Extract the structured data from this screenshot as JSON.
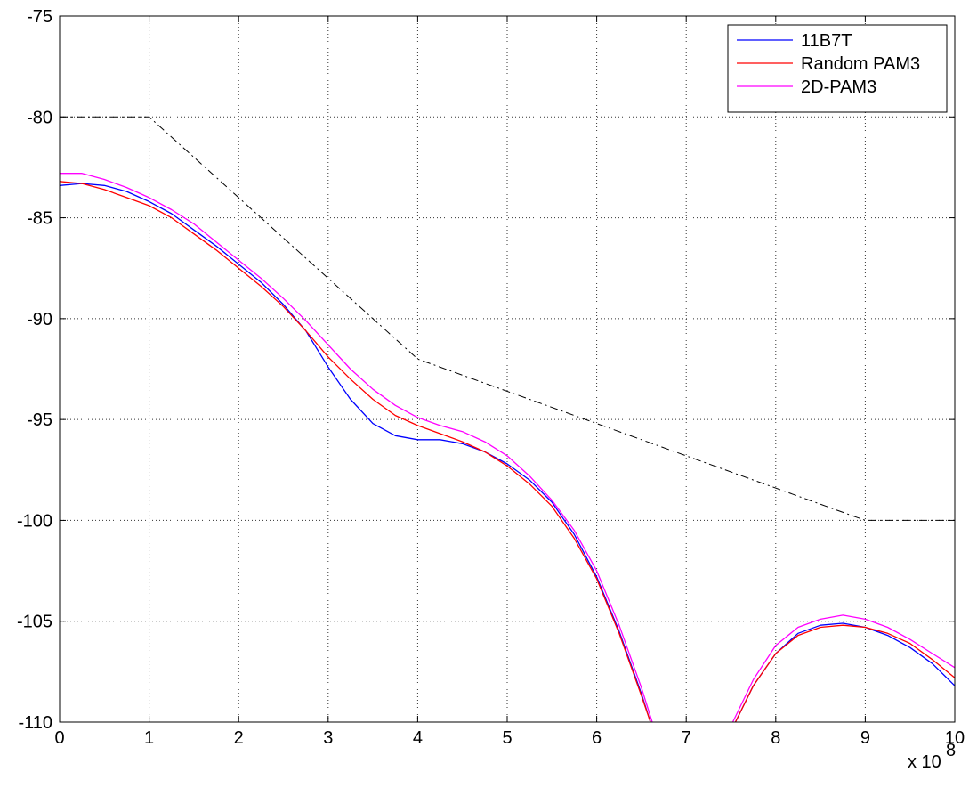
{
  "chart_data": {
    "type": "line",
    "title": "",
    "xlabel": "",
    "ylabel": "",
    "x_multiplier_label": "x 10",
    "x_multiplier_exponent": "8",
    "xlim": [
      0,
      10
    ],
    "ylim": [
      -110,
      -75
    ],
    "xticks": [
      0,
      1,
      2,
      3,
      4,
      5,
      6,
      7,
      8,
      9,
      10
    ],
    "xtick_labels": [
      "0",
      "1",
      "2",
      "3",
      "4",
      "5",
      "6",
      "7",
      "8",
      "9",
      "10"
    ],
    "yticks": [
      -110,
      -105,
      -100,
      -95,
      -90,
      -85,
      -80,
      -75
    ],
    "ytick_labels": [
      "-110",
      "-105",
      "-100",
      "-95",
      "-90",
      "-85",
      "-80",
      "-75"
    ],
    "grid": true,
    "legend_position": "top-right",
    "series": [
      {
        "name": "11B7T",
        "color": "#0000ff",
        "style": "solid",
        "points": [
          [
            0,
            -83.4
          ],
          [
            0.25,
            -83.3
          ],
          [
            0.5,
            -83.4
          ],
          [
            0.75,
            -83.7
          ],
          [
            1.0,
            -84.2
          ],
          [
            1.25,
            -84.8
          ],
          [
            1.5,
            -85.6
          ],
          [
            1.75,
            -86.4
          ],
          [
            2.0,
            -87.3
          ],
          [
            2.25,
            -88.2
          ],
          [
            2.5,
            -89.3
          ],
          [
            2.75,
            -90.6
          ],
          [
            3.0,
            -92.4
          ],
          [
            3.25,
            -94.0
          ],
          [
            3.5,
            -95.2
          ],
          [
            3.75,
            -95.8
          ],
          [
            4.0,
            -96.0
          ],
          [
            4.25,
            -96.0
          ],
          [
            4.5,
            -96.2
          ],
          [
            4.75,
            -96.6
          ],
          [
            5.0,
            -97.2
          ],
          [
            5.25,
            -98.0
          ],
          [
            5.5,
            -99.1
          ],
          [
            5.75,
            -100.7
          ],
          [
            6.0,
            -102.8
          ],
          [
            6.25,
            -105.5
          ],
          [
            6.5,
            -108.6
          ],
          [
            6.6,
            -110.0
          ]
        ]
      },
      {
        "name": "11B7T",
        "color": "#0000ff",
        "style": "solid",
        "points": [
          [
            7.55,
            -110.0
          ],
          [
            7.75,
            -108.2
          ],
          [
            8.0,
            -106.6
          ],
          [
            8.25,
            -105.6
          ],
          [
            8.5,
            -105.2
          ],
          [
            8.75,
            -105.1
          ],
          [
            9.0,
            -105.3
          ],
          [
            9.25,
            -105.7
          ],
          [
            9.5,
            -106.3
          ],
          [
            9.75,
            -107.1
          ],
          [
            10.0,
            -108.2
          ]
        ]
      },
      {
        "name": "Random PAM3",
        "color": "#ff0000",
        "style": "solid",
        "points": [
          [
            0,
            -83.2
          ],
          [
            0.25,
            -83.3
          ],
          [
            0.5,
            -83.6
          ],
          [
            0.75,
            -84.0
          ],
          [
            1.0,
            -84.4
          ],
          [
            1.25,
            -85.0
          ],
          [
            1.5,
            -85.8
          ],
          [
            1.75,
            -86.6
          ],
          [
            2.0,
            -87.5
          ],
          [
            2.25,
            -88.4
          ],
          [
            2.5,
            -89.4
          ],
          [
            2.75,
            -90.6
          ],
          [
            3.0,
            -91.9
          ],
          [
            3.25,
            -93.0
          ],
          [
            3.5,
            -94.0
          ],
          [
            3.75,
            -94.8
          ],
          [
            4.0,
            -95.3
          ],
          [
            4.25,
            -95.7
          ],
          [
            4.5,
            -96.1
          ],
          [
            4.75,
            -96.6
          ],
          [
            5.0,
            -97.3
          ],
          [
            5.25,
            -98.2
          ],
          [
            5.5,
            -99.3
          ],
          [
            5.75,
            -100.9
          ],
          [
            6.0,
            -102.9
          ],
          [
            6.25,
            -105.6
          ],
          [
            6.5,
            -108.7
          ],
          [
            6.6,
            -110.0
          ]
        ]
      },
      {
        "name": "Random PAM3",
        "color": "#ff0000",
        "style": "solid",
        "points": [
          [
            7.55,
            -110.0
          ],
          [
            7.75,
            -108.2
          ],
          [
            8.0,
            -106.6
          ],
          [
            8.25,
            -105.7
          ],
          [
            8.5,
            -105.3
          ],
          [
            8.75,
            -105.2
          ],
          [
            9.0,
            -105.3
          ],
          [
            9.25,
            -105.6
          ],
          [
            9.5,
            -106.1
          ],
          [
            9.75,
            -106.9
          ],
          [
            10.0,
            -107.8
          ]
        ]
      },
      {
        "name": "2D-PAM3",
        "color": "#ff00ff",
        "style": "solid",
        "points": [
          [
            0,
            -82.8
          ],
          [
            0.25,
            -82.8
          ],
          [
            0.5,
            -83.1
          ],
          [
            0.75,
            -83.5
          ],
          [
            1.0,
            -84.0
          ],
          [
            1.25,
            -84.6
          ],
          [
            1.5,
            -85.3
          ],
          [
            1.75,
            -86.2
          ],
          [
            2.0,
            -87.1
          ],
          [
            2.25,
            -88.0
          ],
          [
            2.5,
            -89.0
          ],
          [
            2.75,
            -90.1
          ],
          [
            3.0,
            -91.3
          ],
          [
            3.25,
            -92.5
          ],
          [
            3.5,
            -93.5
          ],
          [
            3.75,
            -94.3
          ],
          [
            4.0,
            -94.9
          ],
          [
            4.25,
            -95.3
          ],
          [
            4.5,
            -95.6
          ],
          [
            4.75,
            -96.1
          ],
          [
            5.0,
            -96.8
          ],
          [
            5.25,
            -97.8
          ],
          [
            5.5,
            -99.0
          ],
          [
            5.75,
            -100.5
          ],
          [
            6.0,
            -102.5
          ],
          [
            6.25,
            -105.2
          ],
          [
            6.5,
            -108.3
          ],
          [
            6.62,
            -110.0
          ]
        ]
      },
      {
        "name": "2D-PAM3",
        "color": "#ff00ff",
        "style": "solid",
        "points": [
          [
            7.52,
            -110.0
          ],
          [
            7.75,
            -107.9
          ],
          [
            8.0,
            -106.2
          ],
          [
            8.25,
            -105.3
          ],
          [
            8.5,
            -104.9
          ],
          [
            8.75,
            -104.7
          ],
          [
            9.0,
            -104.9
          ],
          [
            9.25,
            -105.3
          ],
          [
            9.5,
            -105.9
          ],
          [
            9.75,
            -106.6
          ],
          [
            10.0,
            -107.3
          ]
        ]
      },
      {
        "name": "",
        "color": "#000000",
        "style": "dash-dot",
        "points": [
          [
            0,
            -80
          ],
          [
            1,
            -80
          ],
          [
            4,
            -92
          ],
          [
            9,
            -100
          ],
          [
            10,
            -100
          ]
        ]
      }
    ]
  }
}
